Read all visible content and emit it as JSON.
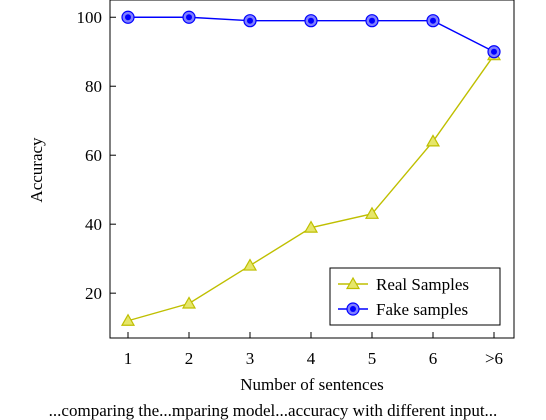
{
  "chart_data": {
    "type": "line",
    "categories": [
      "1",
      "2",
      "3",
      "4",
      "5",
      "6",
      ">6"
    ],
    "xlabel": "Number of sentences",
    "ylabel": "Accuracy",
    "ylim": [
      7,
      105
    ],
    "yticks": [
      20,
      40,
      60,
      80,
      100
    ],
    "grid": false,
    "legend": {
      "placement": "bottom-right"
    },
    "series": [
      {
        "name": "Real Samples",
        "values": [
          12,
          17,
          28,
          39,
          43,
          64,
          89
        ],
        "color": "#bfbf00",
        "marker": "triangle"
      },
      {
        "name": "Fake samples",
        "values": [
          100,
          100,
          99,
          99,
          99,
          99,
          90
        ],
        "color": "#0000ff",
        "marker": "circle"
      }
    ]
  },
  "caption": "...comparing the...mparing model...accuracy with different input..."
}
